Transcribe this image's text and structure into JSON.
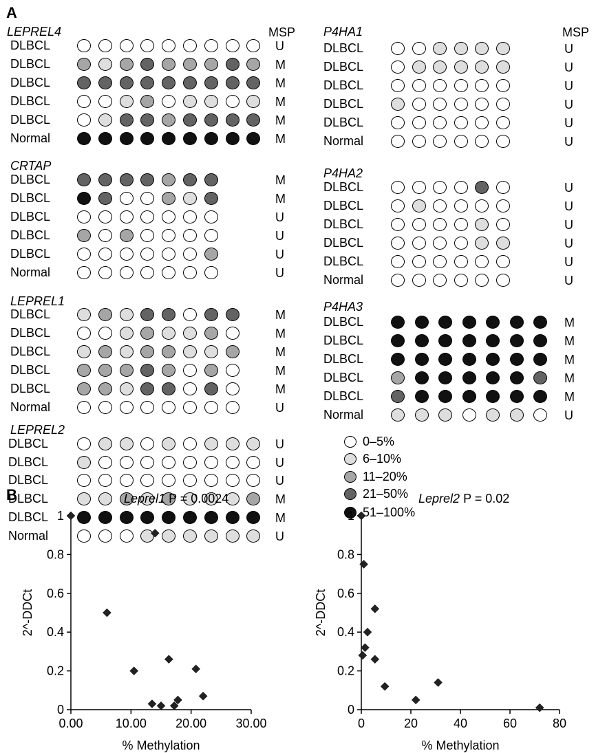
{
  "panels": {
    "a": "A",
    "b": "B"
  },
  "msp_header": "MSP",
  "level_colors": {
    "0": "#ffffff",
    "1": "#dedede",
    "2": "#a6a6a6",
    "3": "#636363",
    "4": "#111111"
  },
  "legend": [
    {
      "level": 0,
      "label": "0–5%"
    },
    {
      "level": 1,
      "label": "6–10%"
    },
    {
      "level": 2,
      "label": "11–20%"
    },
    {
      "level": 3,
      "label": "21–50%"
    },
    {
      "level": 4,
      "label": "51–100%"
    }
  ],
  "genes": [
    {
      "name": "LEPREL4",
      "rows": [
        {
          "label": "DLBCL",
          "msp": "U",
          "levels": [
            0,
            0,
            0,
            0,
            0,
            0,
            0,
            0,
            0
          ]
        },
        {
          "label": "DLBCL",
          "msp": "M",
          "levels": [
            2,
            1,
            2,
            3,
            2,
            2,
            2,
            3,
            2
          ]
        },
        {
          "label": "DLBCL",
          "msp": "M",
          "levels": [
            3,
            3,
            3,
            3,
            3,
            3,
            3,
            3,
            3
          ]
        },
        {
          "label": "DLBCL",
          "msp": "M",
          "levels": [
            0,
            0,
            1,
            2,
            0,
            1,
            1,
            0,
            1
          ]
        },
        {
          "label": "DLBCL",
          "msp": "M",
          "levels": [
            0,
            1,
            3,
            3,
            2,
            3,
            3,
            3,
            3
          ]
        },
        {
          "label": "Normal",
          "msp": "M",
          "levels": [
            4,
            4,
            4,
            4,
            4,
            4,
            4,
            4,
            4
          ]
        }
      ]
    },
    {
      "name": "CRTAP",
      "rows": [
        {
          "label": "DLBCL",
          "msp": "M",
          "levels": [
            3,
            3,
            3,
            3,
            2,
            3,
            3
          ]
        },
        {
          "label": "DLBCL",
          "msp": "M",
          "levels": [
            4,
            3,
            0,
            0,
            2,
            1,
            3
          ]
        },
        {
          "label": "DLBCL",
          "msp": "U",
          "levels": [
            0,
            0,
            0,
            0,
            0,
            0,
            0
          ]
        },
        {
          "label": "DLBCL",
          "msp": "U",
          "levels": [
            2,
            0,
            2,
            0,
            0,
            0,
            0
          ]
        },
        {
          "label": "DLBCL",
          "msp": "U",
          "levels": [
            0,
            0,
            0,
            0,
            0,
            0,
            2
          ]
        },
        {
          "label": "Normal",
          "msp": "U",
          "levels": [
            0,
            0,
            0,
            0,
            0,
            0,
            0
          ]
        }
      ]
    },
    {
      "name": "LEPREL1",
      "rows": [
        {
          "label": "DLBCL",
          "msp": "M",
          "levels": [
            1,
            2,
            1,
            3,
            3,
            0,
            3,
            3
          ]
        },
        {
          "label": "DLBCL",
          "msp": "M",
          "levels": [
            0,
            0,
            1,
            2,
            1,
            1,
            2,
            0
          ]
        },
        {
          "label": "DLBCL",
          "msp": "M",
          "levels": [
            1,
            2,
            1,
            2,
            2,
            1,
            1,
            2
          ]
        },
        {
          "label": "DLBCL",
          "msp": "M",
          "levels": [
            2,
            2,
            2,
            3,
            2,
            0,
            2,
            0
          ]
        },
        {
          "label": "DLBCL",
          "msp": "M",
          "levels": [
            2,
            2,
            1,
            3,
            3,
            0,
            3,
            0
          ]
        },
        {
          "label": "Normal",
          "msp": "U",
          "levels": [
            0,
            0,
            0,
            0,
            0,
            0,
            0,
            0
          ]
        }
      ]
    },
    {
      "name": "LEPREL2",
      "rows": [
        {
          "label": "DLBCL",
          "msp": "U",
          "levels": [
            0,
            1,
            1,
            0,
            1,
            0,
            1,
            1,
            1
          ]
        },
        {
          "label": "DLBCL",
          "msp": "U",
          "levels": [
            1,
            0,
            0,
            0,
            0,
            0,
            0,
            0,
            0
          ]
        },
        {
          "label": "DLBCL",
          "msp": "U",
          "levels": [
            0,
            0,
            0,
            0,
            0,
            0,
            0,
            0,
            0
          ]
        },
        {
          "label": "DLBCL",
          "msp": "M",
          "levels": [
            1,
            1,
            2,
            1,
            2,
            1,
            1,
            1,
            2
          ]
        },
        {
          "label": "DLBCL",
          "msp": "M",
          "levels": [
            4,
            4,
            4,
            4,
            4,
            4,
            4,
            4,
            4
          ]
        },
        {
          "label": "Normal",
          "msp": "U",
          "levels": [
            0,
            0,
            0,
            1,
            1,
            1,
            1,
            1,
            1
          ]
        }
      ]
    },
    {
      "name": "P4HA1",
      "rows": [
        {
          "label": "DLBCL",
          "msp": "U",
          "levels": [
            0,
            0,
            1,
            1,
            1,
            1
          ]
        },
        {
          "label": "DLBCL",
          "msp": "U",
          "levels": [
            0,
            1,
            1,
            1,
            1,
            1
          ]
        },
        {
          "label": "DLBCL",
          "msp": "U",
          "levels": [
            0,
            0,
            0,
            0,
            0,
            0
          ]
        },
        {
          "label": "DLBCL",
          "msp": "U",
          "levels": [
            1,
            0,
            0,
            0,
            0,
            0
          ]
        },
        {
          "label": "DLBCL",
          "msp": "U",
          "levels": [
            0,
            0,
            0,
            0,
            0,
            0
          ]
        },
        {
          "label": "Normal",
          "msp": "U",
          "levels": [
            0,
            0,
            0,
            0,
            0,
            0
          ]
        }
      ]
    },
    {
      "name": "P4HA2",
      "rows": [
        {
          "label": "DLBCL",
          "msp": "U",
          "levels": [
            0,
            0,
            0,
            0,
            3,
            0
          ]
        },
        {
          "label": "DLBCL",
          "msp": "U",
          "levels": [
            0,
            1,
            0,
            0,
            0,
            0
          ]
        },
        {
          "label": "DLBCL",
          "msp": "U",
          "levels": [
            0,
            0,
            0,
            0,
            1,
            0
          ]
        },
        {
          "label": "DLBCL",
          "msp": "U",
          "levels": [
            0,
            0,
            0,
            0,
            1,
            1
          ]
        },
        {
          "label": "DLBCL",
          "msp": "U",
          "levels": [
            0,
            0,
            0,
            0,
            0,
            0
          ]
        },
        {
          "label": "Normal",
          "msp": "U",
          "levels": [
            0,
            0,
            0,
            0,
            0,
            0
          ]
        }
      ]
    },
    {
      "name": "P4HA3",
      "rows": [
        {
          "label": "DLBCL",
          "msp": "M",
          "levels": [
            4,
            4,
            4,
            4,
            4,
            4,
            4
          ]
        },
        {
          "label": "DLBCL",
          "msp": "M",
          "levels": [
            4,
            4,
            4,
            4,
            4,
            4,
            4
          ]
        },
        {
          "label": "DLBCL",
          "msp": "M",
          "levels": [
            4,
            4,
            4,
            4,
            4,
            4,
            4
          ]
        },
        {
          "label": "DLBCL",
          "msp": "M",
          "levels": [
            2,
            4,
            4,
            4,
            4,
            4,
            3
          ]
        },
        {
          "label": "DLBCL",
          "msp": "M",
          "levels": [
            3,
            4,
            4,
            4,
            4,
            4,
            4
          ]
        },
        {
          "label": "Normal",
          "msp": "U",
          "levels": [
            1,
            1,
            1,
            0,
            1,
            1,
            0
          ]
        }
      ]
    }
  ],
  "chart_data": [
    {
      "type": "scatter",
      "title_gene": "Leprel1",
      "title_stat": "P = 0.0024",
      "xlabel": "% Methylation",
      "ylabel": "2^-DDCt",
      "xlim": [
        0,
        30
      ],
      "ylim": [
        0,
        1
      ],
      "xticks": [
        "0.00",
        "10.00",
        "20.00",
        "30.00"
      ],
      "yticks": [
        "0",
        "0.2",
        "0.4",
        "0.6",
        "0.8",
        "1"
      ],
      "points": [
        [
          0,
          1.0
        ],
        [
          6,
          0.5
        ],
        [
          10.5,
          0.2
        ],
        [
          13.5,
          0.03
        ],
        [
          14,
          0.91
        ],
        [
          15,
          0.02
        ],
        [
          16.3,
          0.26
        ],
        [
          17.2,
          0.02
        ],
        [
          17.8,
          0.05
        ],
        [
          20.8,
          0.21
        ],
        [
          22,
          0.07
        ]
      ]
    },
    {
      "type": "scatter",
      "title_gene": "Leprel2",
      "title_stat": "P = 0.02",
      "xlabel": "% Methylation",
      "ylabel": "2^-DDCt",
      "xlim": [
        0,
        80
      ],
      "ylim": [
        0,
        1
      ],
      "xticks": [
        "0",
        "20",
        "40",
        "60",
        "80"
      ],
      "yticks": [
        "0",
        "0.2",
        "0.4",
        "0.6",
        "0.8",
        "1"
      ],
      "points": [
        [
          0,
          1.0
        ],
        [
          1,
          0.75
        ],
        [
          0.5,
          0.28
        ],
        [
          1.5,
          0.32
        ],
        [
          2.5,
          0.4
        ],
        [
          5.5,
          0.52
        ],
        [
          5.5,
          0.26
        ],
        [
          9.5,
          0.12
        ],
        [
          22,
          0.05
        ],
        [
          31,
          0.14
        ],
        [
          72,
          0.01
        ]
      ]
    }
  ]
}
